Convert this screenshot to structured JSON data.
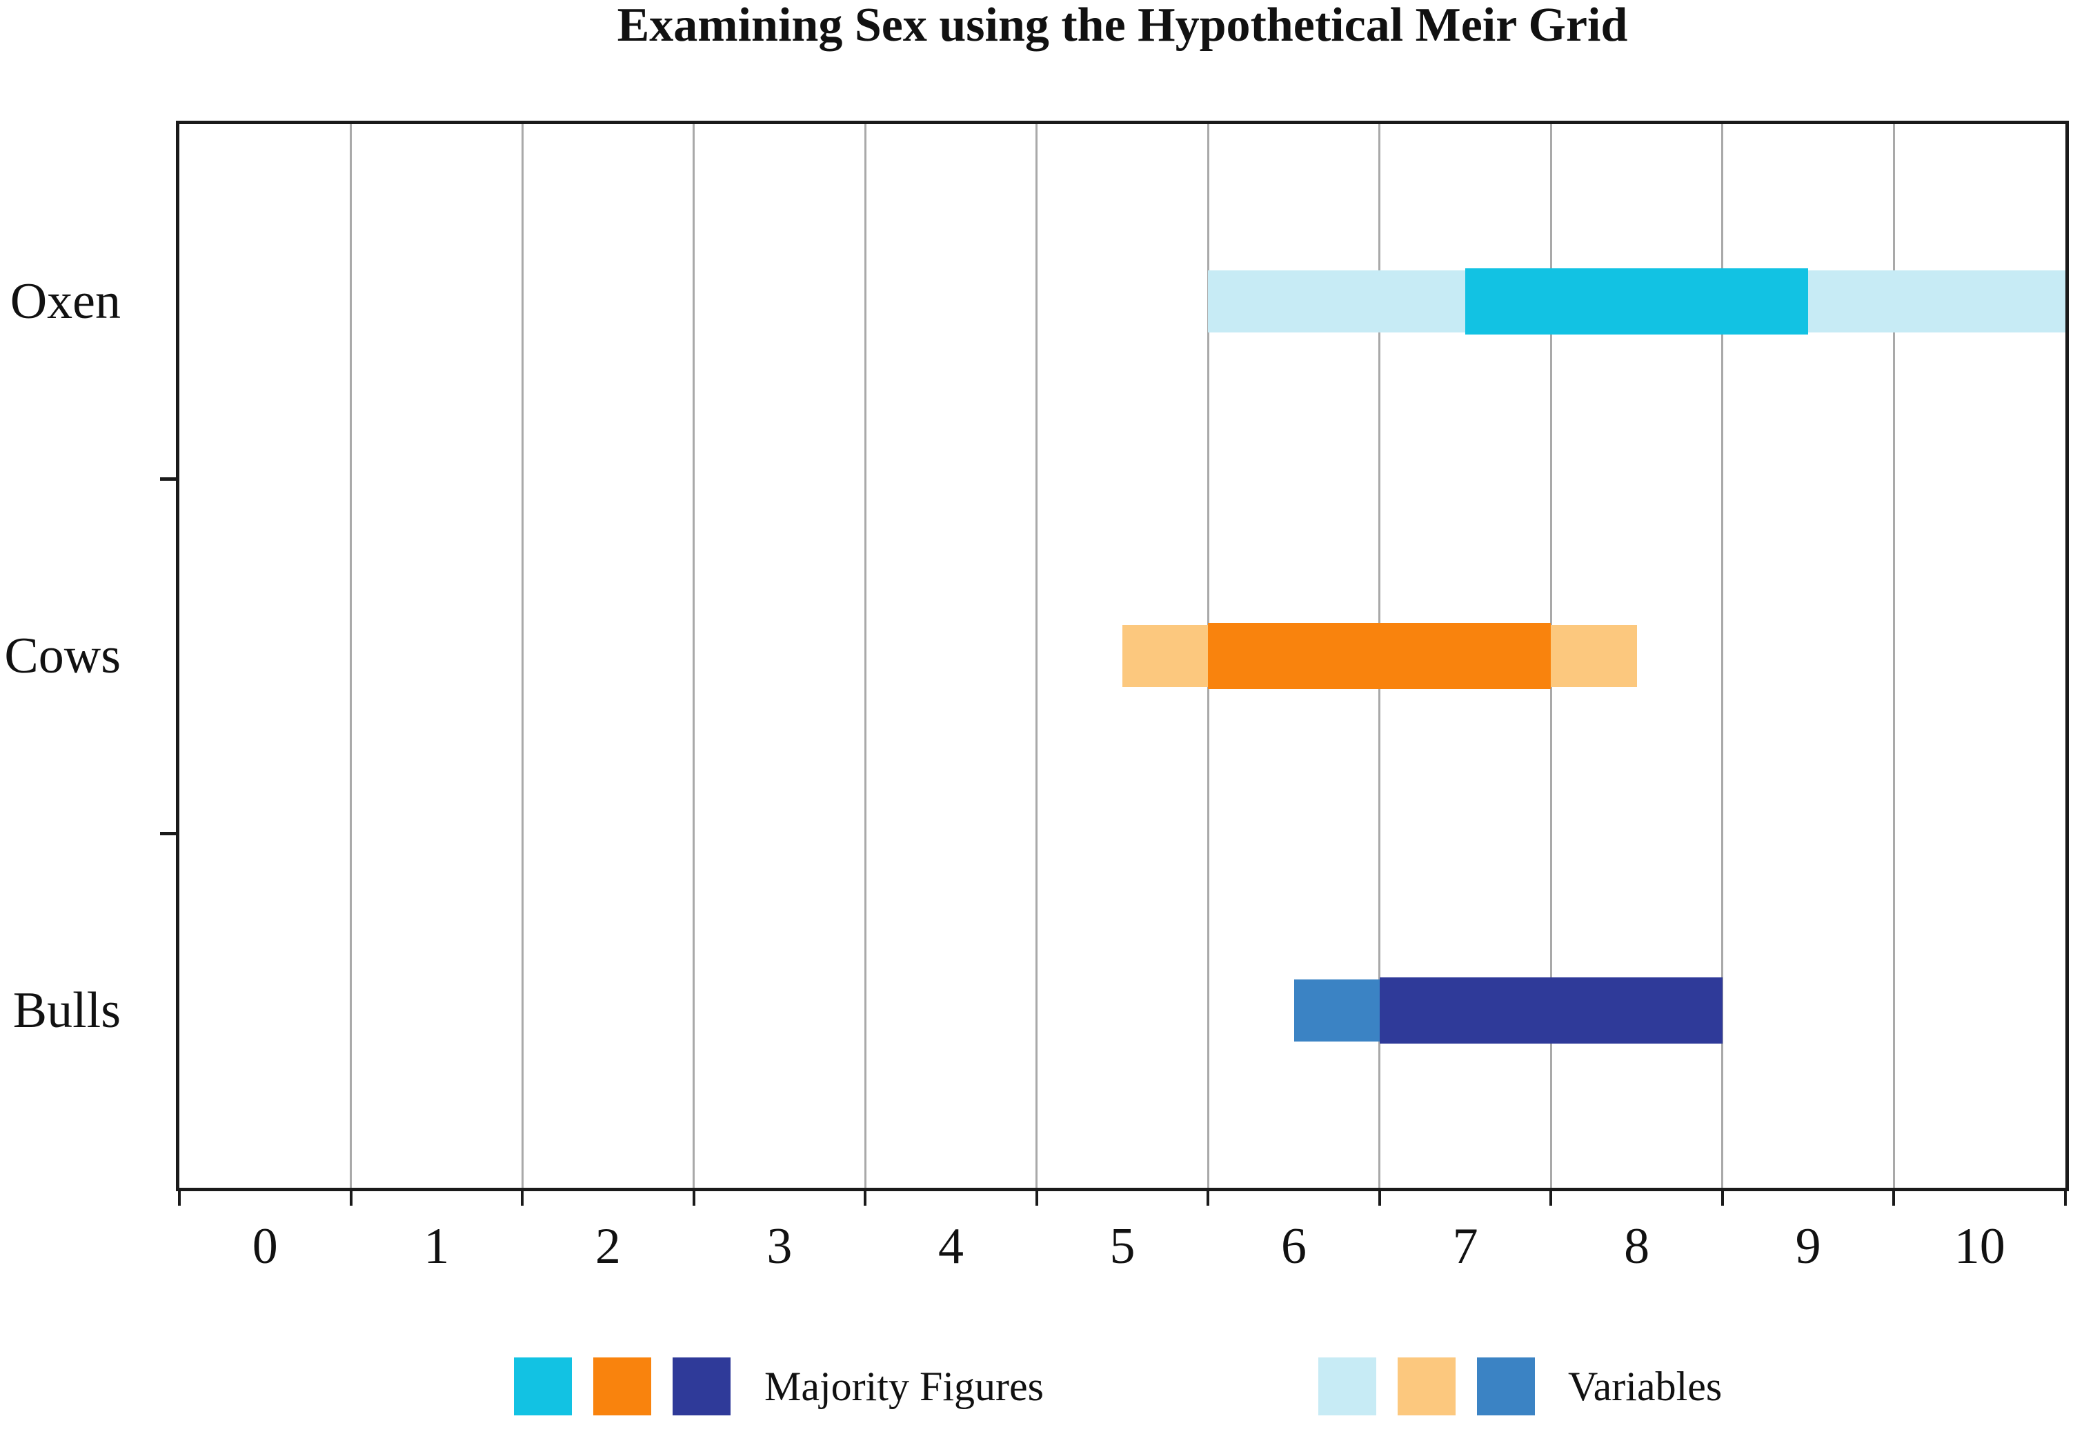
{
  "chart_data": {
    "type": "bar",
    "orientation": "horizontal",
    "title": "Examining Sex using the Hypothetical Meir Grid",
    "categories": [
      "Oxen",
      "Cows",
      "Bulls"
    ],
    "x_tick_labels": [
      "0",
      "1",
      "2",
      "3",
      "4",
      "5",
      "6",
      "7",
      "8",
      "9",
      "10"
    ],
    "xlim": [
      -0.5,
      10.5
    ],
    "grid": {
      "vertical_gridlines": true,
      "gridlines_at_values": [
        0.5,
        1.5,
        2.5,
        3.5,
        4.5,
        5.5,
        6.5,
        7.5,
        8.5,
        9.5
      ]
    },
    "legend_position": "bottom",
    "series": [
      {
        "name": "Variables",
        "layer": "background",
        "ranges": [
          [
            5.5,
            10.5
          ],
          [
            5.0,
            8.0
          ],
          [
            6.0,
            6.5
          ]
        ],
        "colors": [
          "#c7ebf5",
          "#fcc87e",
          "#3b83c4"
        ]
      },
      {
        "name": "Majority Figures",
        "layer": "foreground",
        "ranges": [
          [
            7.0,
            9.0
          ],
          [
            5.5,
            7.5
          ],
          [
            6.5,
            8.5
          ]
        ],
        "colors": [
          "#12c2e3",
          "#f9830d",
          "#2f3a99"
        ]
      }
    ],
    "legend": [
      {
        "label": "Majority Figures",
        "swatches": [
          "#12c2e3",
          "#f9830d",
          "#2f3a99"
        ]
      },
      {
        "label": "Variables",
        "swatches": [
          "#c7ebf5",
          "#fcc87e",
          "#3b83c4"
        ]
      }
    ],
    "colors": {
      "axis": "#1a1a1a",
      "gridline": "#a9a9a9",
      "background": "#ffffff",
      "text": "#111111"
    }
  }
}
